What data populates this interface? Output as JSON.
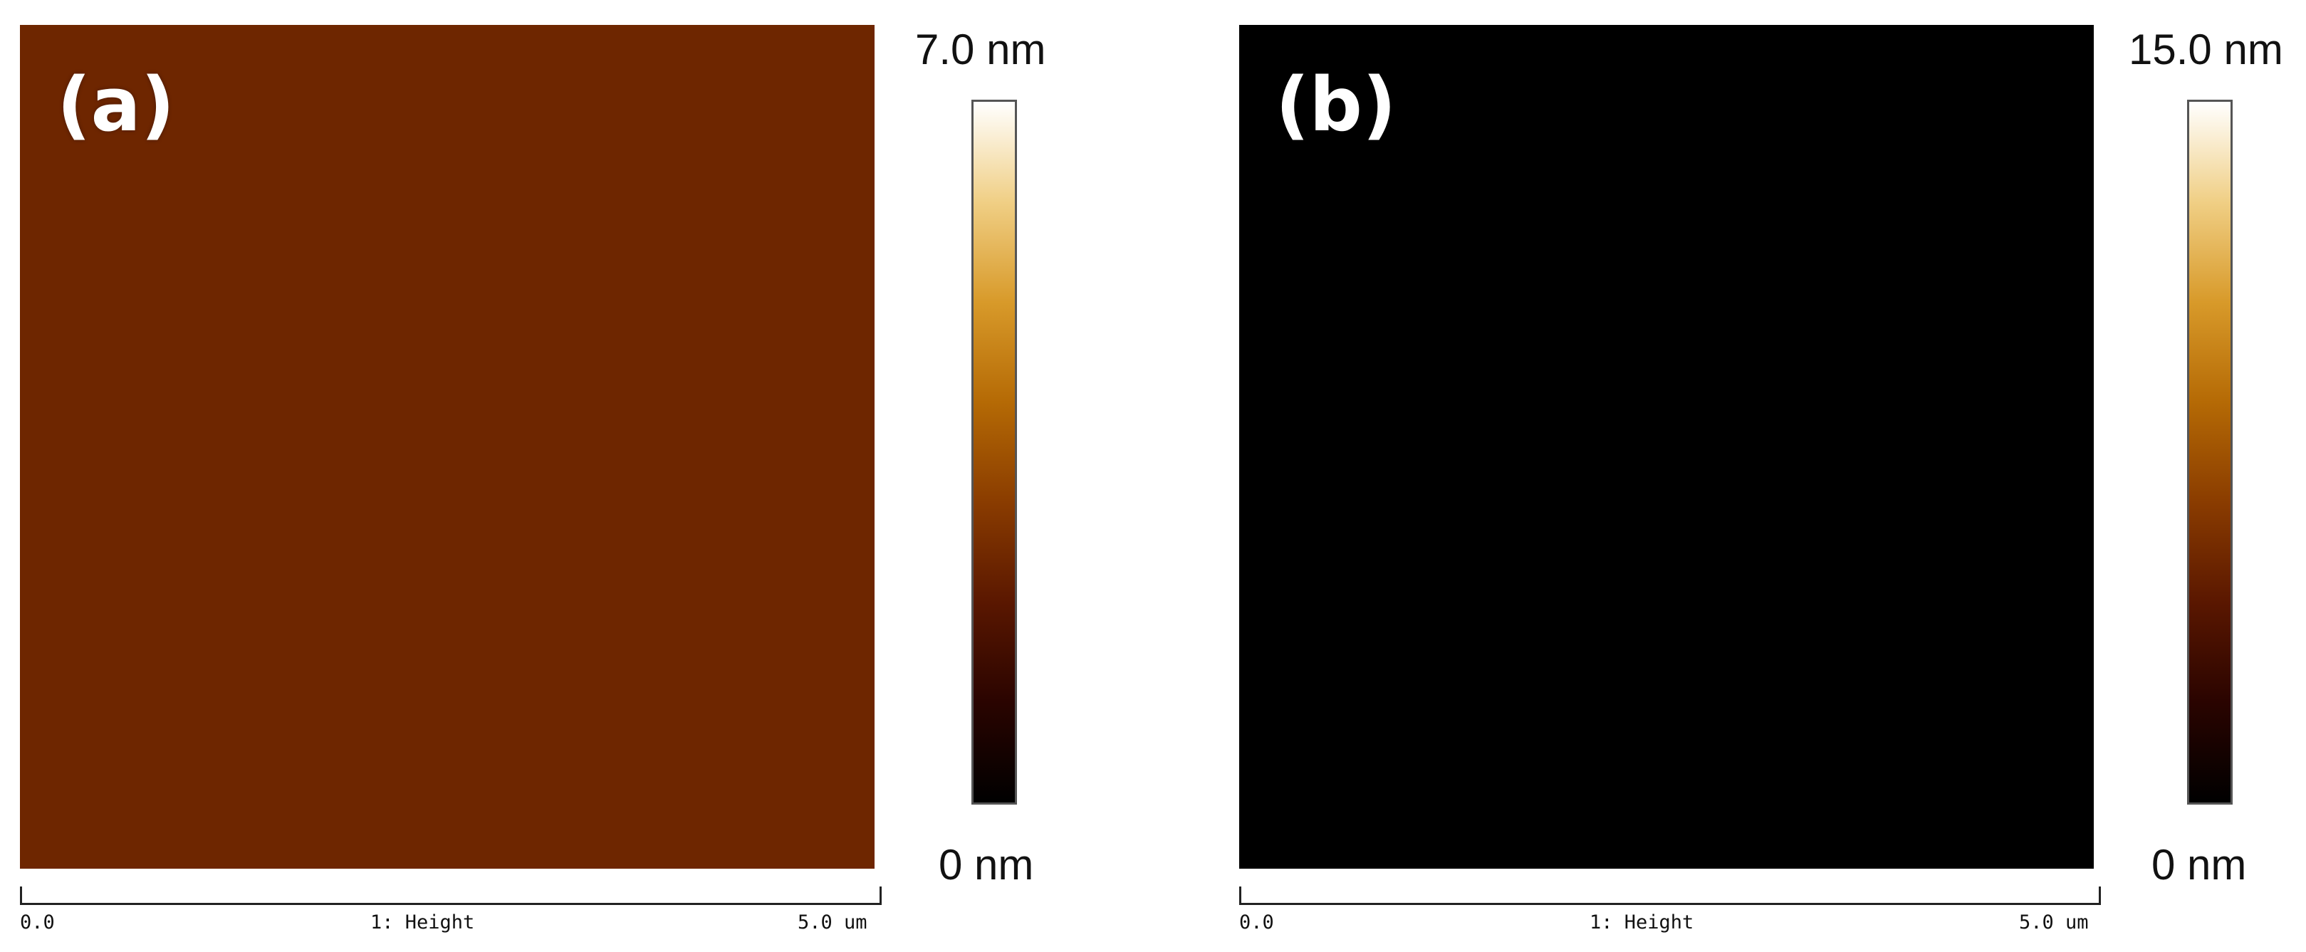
{
  "colors": {
    "afm_gradient": [
      "#000000",
      "#2a0400",
      "#5a1700",
      "#8a3c00",
      "#b56a05",
      "#d89a2a",
      "#f0cf85",
      "#ffffff"
    ]
  },
  "panels": [
    {
      "label": "(a)",
      "colorbar": {
        "max_label": "7.0 nm",
        "min_label": "0 nm"
      },
      "axis": {
        "start": "0.0",
        "channel": "1: Height",
        "end": "5.0 um"
      }
    },
    {
      "label": "(b)",
      "colorbar": {
        "max_label": "15.0 nm",
        "min_label": "0 nm"
      },
      "axis": {
        "start": "0.0",
        "channel": "1: Height",
        "end": "5.0 um"
      }
    }
  ]
}
